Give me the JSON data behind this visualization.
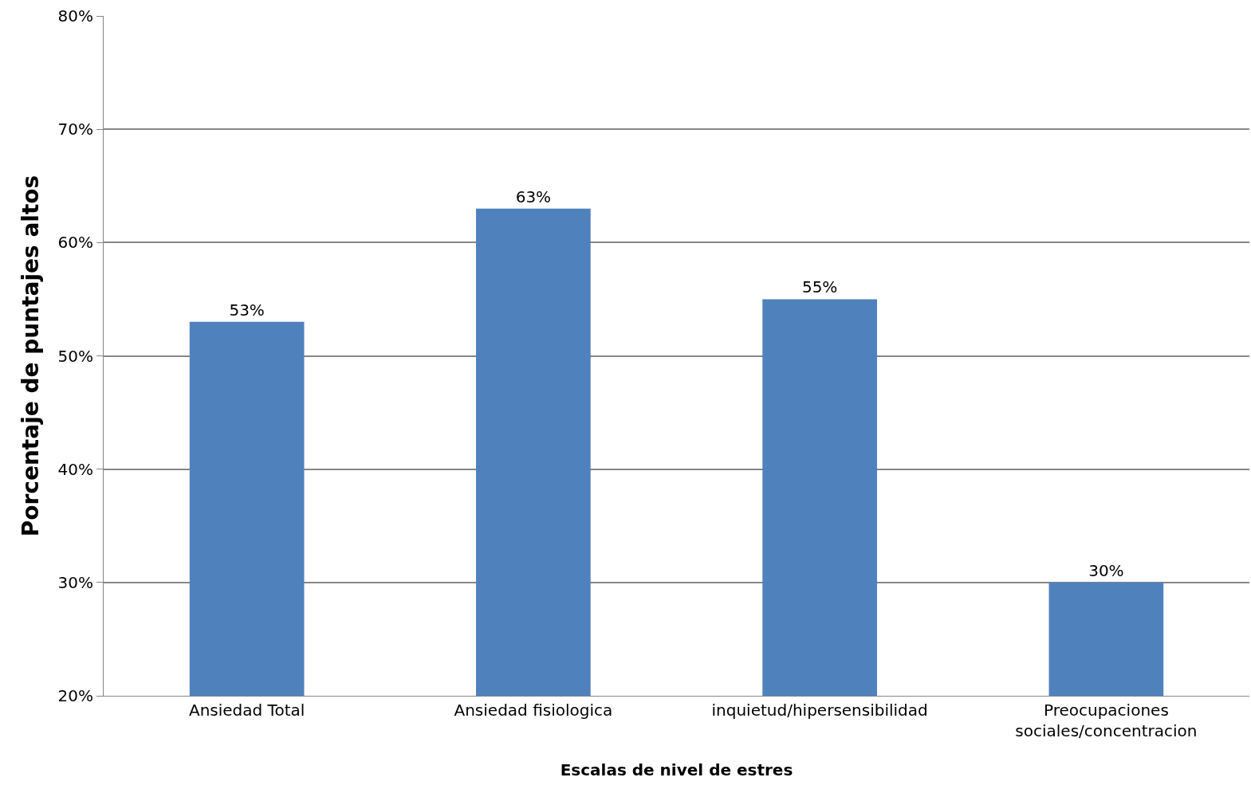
{
  "chart_data": {
    "type": "bar",
    "xlabel": "Escalas de nivel de estres",
    "ylabel": "Porcentaje de puntajes altos",
    "categories": [
      "Ansiedad Total",
      "Ansiedad fisiologica",
      "inquietud/hipersensibilidad",
      "Preocupaciones sociales/concentracion"
    ],
    "values": [
      53,
      63,
      55,
      30
    ],
    "value_labels": [
      "53%",
      "63%",
      "55%",
      "30%"
    ],
    "color": "#4f81bd",
    "ylim": [
      20,
      80
    ],
    "yticks": [
      {
        "value": 20,
        "label": "20%"
      },
      {
        "value": 30,
        "label": "30%"
      },
      {
        "value": 40,
        "label": "40%"
      },
      {
        "value": 50,
        "label": "50%"
      },
      {
        "value": 60,
        "label": "60%"
      },
      {
        "value": 70,
        "label": "70%"
      },
      {
        "value": 80,
        "label": "80%"
      }
    ],
    "grid": "y",
    "legend": false
  }
}
